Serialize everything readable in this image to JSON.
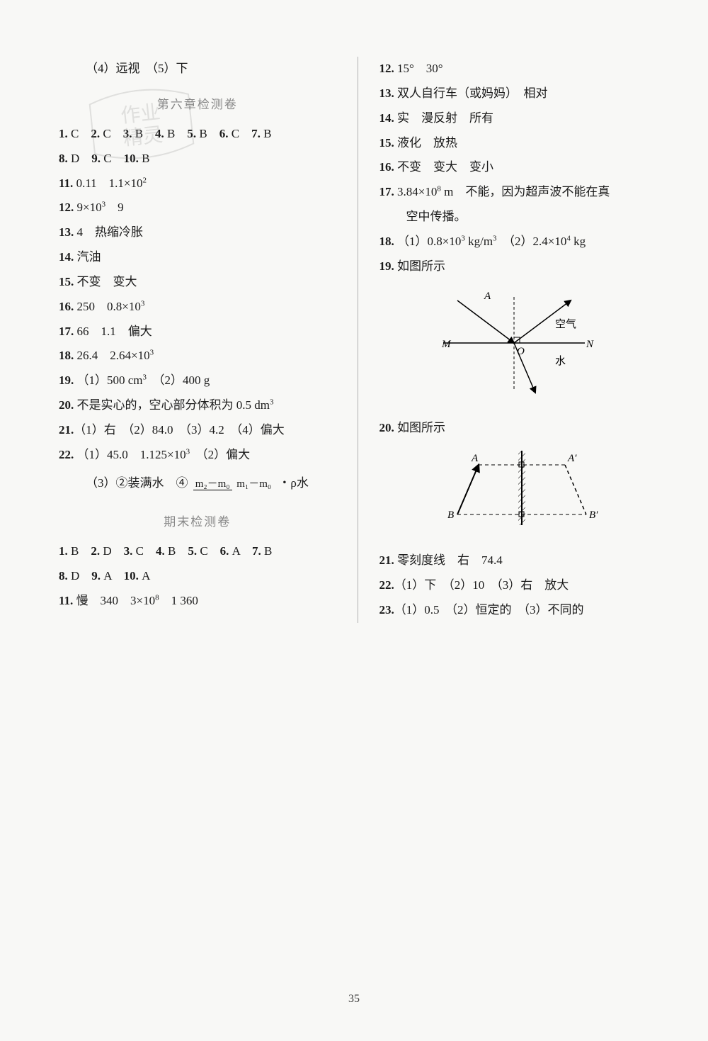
{
  "page_number": "35",
  "left": {
    "top_line": "（4）远视　（5）下",
    "heading1": "第六章检测卷",
    "mc1": [
      {
        "n": "1",
        "a": "C"
      },
      {
        "n": "2",
        "a": "C"
      },
      {
        "n": "3",
        "a": "B"
      },
      {
        "n": "4",
        "a": "B"
      },
      {
        "n": "5",
        "a": "B"
      },
      {
        "n": "6",
        "a": "C"
      },
      {
        "n": "7",
        "a": "B"
      }
    ],
    "mc2": [
      {
        "n": "8",
        "a": "D"
      },
      {
        "n": "9",
        "a": "C"
      },
      {
        "n": "10",
        "a": "B"
      }
    ],
    "q11_a": "11.",
    "q11_b": "0.11　1.1×10",
    "q11_exp": "2",
    "q12_a": "12.",
    "q12_b": "9×10",
    "q12_exp": "3",
    "q12_c": "　9",
    "q13": "13. 4　热缩冷胀",
    "q14": "14. 汽油",
    "q15": "15. 不变　变大",
    "q16_a": "16.",
    "q16_b": "250　0.8×10",
    "q16_exp": "3",
    "q17": "17. 66　1.1　偏大",
    "q18_a": "18.",
    "q18_b": "26.4　2.64×10",
    "q18_exp": "3",
    "q19_a": "19.",
    "q19_b": "（1）500 cm",
    "q19_exp": "3",
    "q19_c": "　（2）400 g",
    "q20_a": "20.",
    "q20_b": "不是实心的，空心部分体积为 0.5 dm",
    "q20_exp": "3",
    "q21": "21.（1）右　（2）84.0　（3）4.2　（4）偏大",
    "q22_a": "22.",
    "q22_b": "（1）45.0　1.125×10",
    "q22_exp": "3",
    "q22_c": "　（2）偏大",
    "q22_d_pre": "（3）②装满水　④",
    "q22_frac_num": "m₂－m₀",
    "q22_frac_den": "m₁－m₀",
    "q22_d_post": "・ρ水",
    "heading2": "期末检测卷",
    "mc3": [
      {
        "n": "1",
        "a": "B"
      },
      {
        "n": "2",
        "a": "D"
      },
      {
        "n": "3",
        "a": "C"
      },
      {
        "n": "4",
        "a": "B"
      },
      {
        "n": "5",
        "a": "C"
      },
      {
        "n": "6",
        "a": "A"
      },
      {
        "n": "7",
        "a": "B"
      }
    ],
    "mc4": [
      {
        "n": "8",
        "a": "D"
      },
      {
        "n": "9",
        "a": "A"
      },
      {
        "n": "10",
        "a": "A"
      }
    ],
    "q11b_a": "11.",
    "q11b_b": "慢　340　3×10",
    "q11b_exp": "8",
    "q11b_c": "　1 360"
  },
  "right": {
    "q12": "12. 15°　30°",
    "q13": "13. 双人自行车（或妈妈）　相对",
    "q14": "14. 实　漫反射　所有",
    "q15": "15. 液化　放热",
    "q16": "16. 不变　变大　变小",
    "q17_a": "17.",
    "q17_b": "3.84×10",
    "q17_exp": "8",
    "q17_c": " m　不能，因为超声波不能在真",
    "q17_d": "空中传播。",
    "q18_a": "18.",
    "q18_b": "（1）0.8×10",
    "q18_exp1": "3",
    "q18_c": " kg/m",
    "q18_exp2": "3",
    "q18_d": "　（2）2.4×10",
    "q18_exp3": "4",
    "q18_e": " kg",
    "q19": "19. 如图所示",
    "fig19": {
      "label_A": "A",
      "label_M": "M",
      "label_N": "N",
      "label_O": "O",
      "label_air": "空气",
      "label_water": "水",
      "line_color": "#000000",
      "dash_pattern": "4,3"
    },
    "q20": "20. 如图所示",
    "fig20": {
      "label_A": "A",
      "label_Ap": "A′",
      "label_B": "B",
      "label_Bp": "B′",
      "line_color": "#000000",
      "dash_pattern": "5,4",
      "hatch_color": "#000000"
    },
    "q21": "21. 零刻度线　右　74.4",
    "q22": "22.（1）下　（2）10　（3）右　放大",
    "q23": "23.（1）0.5　（2）恒定的　（3）不同的"
  }
}
